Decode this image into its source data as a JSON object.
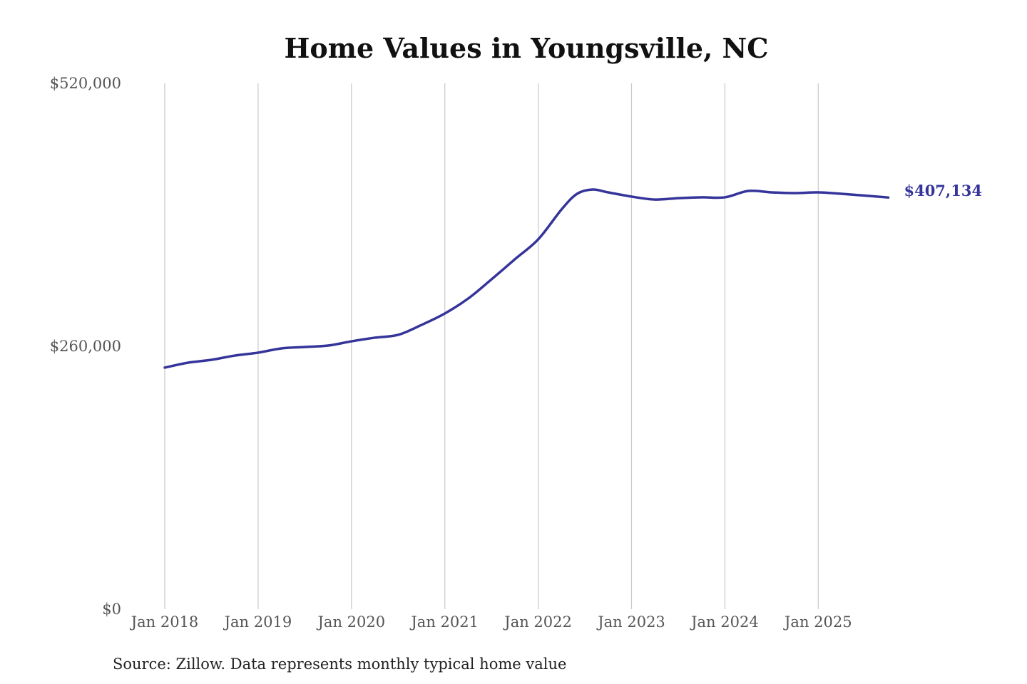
{
  "chart_data": {
    "type": "line",
    "title": "Home Values in Youngsville, NC",
    "source": "Source: Zillow. Data represents monthly typical home value",
    "ylim": [
      0,
      520000
    ],
    "y_ticks": [
      0,
      260000,
      520000
    ],
    "y_tick_labels": [
      "$0",
      "$260,000",
      "$520,000"
    ],
    "x_tick_labels": [
      "Jan 2018",
      "Jan 2019",
      "Jan 2020",
      "Jan 2021",
      "Jan 2022",
      "Jan 2023",
      "Jan 2024",
      "Jan 2025"
    ],
    "x_ticks": [
      "2018-01",
      "2019-01",
      "2020-01",
      "2021-01",
      "2022-01",
      "2023-01",
      "2024-01",
      "2025-01"
    ],
    "grid": "vertical",
    "line_color": "#35349a",
    "end_label": "$407,134",
    "series": [
      {
        "x": [
          "2018-01",
          "2018-04",
          "2018-07",
          "2018-10",
          "2019-01",
          "2019-04",
          "2019-07",
          "2019-10",
          "2020-01",
          "2020-04",
          "2020-07",
          "2020-10",
          "2021-01",
          "2021-04",
          "2021-07",
          "2021-10",
          "2022-01",
          "2022-04",
          "2022-06",
          "2022-08",
          "2022-10",
          "2023-01",
          "2023-04",
          "2023-07",
          "2023-10",
          "2024-01",
          "2024-04",
          "2024-07",
          "2024-10",
          "2025-01",
          "2025-04",
          "2025-07",
          "2025-10"
        ],
        "values": [
          238900,
          243800,
          246600,
          250800,
          253700,
          257900,
          259300,
          260700,
          264900,
          268500,
          271300,
          281100,
          292400,
          307200,
          326200,
          346000,
          365700,
          395300,
          410800,
          415000,
          412200,
          408000,
          405100,
          406500,
          407300,
          407300,
          413600,
          412200,
          411500,
          412200,
          410800,
          409000,
          407134
        ]
      }
    ]
  }
}
